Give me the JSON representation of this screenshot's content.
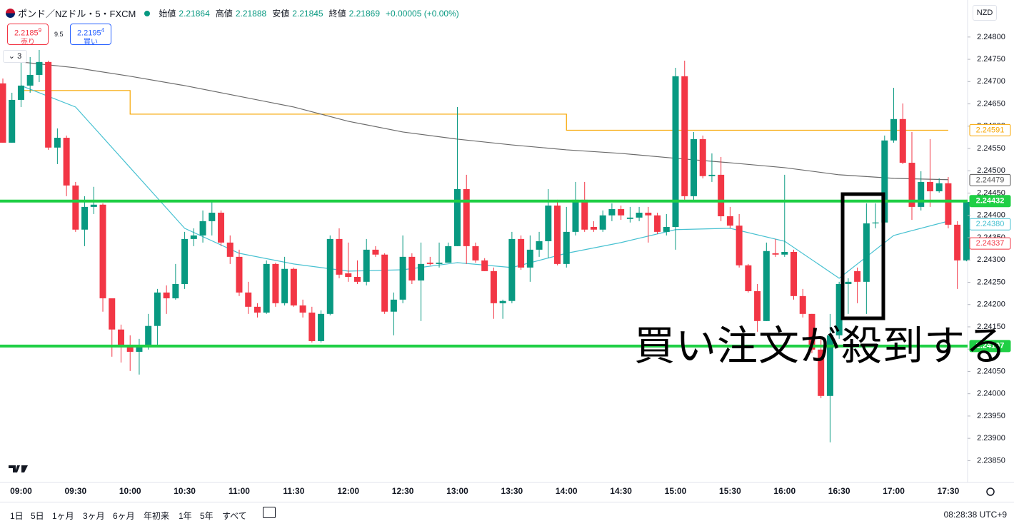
{
  "header": {
    "symbol": "ポンド／NZドル・5・FXCM",
    "ohlc": [
      {
        "label": "始値",
        "value": "2.21864"
      },
      {
        "label": "高値",
        "value": "2.21888"
      },
      {
        "label": "安値",
        "value": "2.21845"
      },
      {
        "label": "終値",
        "value": "2.21869"
      }
    ],
    "change": "+0.00005 (+0.00%)"
  },
  "trade": {
    "sell_price": "2.2185",
    "sell_pip": "9",
    "sell_label": "売り",
    "spread": "9.5",
    "buy_price": "2.2195",
    "buy_pip": "4",
    "buy_label": "買い"
  },
  "indicator_count": "3",
  "currency": "NZD",
  "ranges": [
    "1日",
    "5日",
    "1ヶ月",
    "3ヶ月",
    "6ヶ月",
    "年初来",
    "1年",
    "5年",
    "すべて"
  ],
  "clock": "08:28:38 UTC+9",
  "chart_data": {
    "type": "candlestick",
    "up_color": "#089981",
    "down_color": "#f23645",
    "annotation": "買い注文が殺到する",
    "categories": [
      null,
      null,
      "09:00",
      null,
      null,
      null,
      null,
      null,
      "09:30",
      null,
      null,
      null,
      null,
      null,
      "10:00",
      null,
      null,
      null,
      null,
      null,
      "10:30",
      null,
      null,
      null,
      null,
      null,
      "11:00",
      null,
      null,
      null,
      null,
      null,
      "11:30",
      null,
      null,
      null,
      null,
      null,
      "12:00",
      null,
      null,
      null,
      null,
      null,
      "12:30",
      null,
      null,
      null,
      null,
      null,
      "13:00",
      null,
      null,
      null,
      null,
      null,
      "13:30",
      null,
      null,
      null,
      null,
      null,
      "14:00",
      null,
      null,
      null,
      null,
      null,
      "14:30",
      null,
      null,
      null,
      null,
      null,
      "15:00",
      null,
      null,
      null,
      null,
      null,
      "15:30",
      null,
      null,
      null,
      null,
      null,
      "16:00",
      null,
      null,
      null,
      null,
      null,
      "16:30",
      null,
      null,
      null,
      null,
      null,
      "17:00",
      null,
      null,
      null,
      null,
      null,
      "17:30",
      null,
      null
    ],
    "candles": [
      [
        2.24696,
        2.24707,
        2.24563,
        2.24563
      ],
      [
        2.24563,
        2.24675,
        2.24563,
        2.24659
      ],
      [
        2.24659,
        2.24747,
        2.24643,
        2.24691
      ],
      [
        2.24691,
        2.24755,
        2.24675,
        2.24715
      ],
      [
        2.24715,
        2.24771,
        2.24699,
        2.24744
      ],
      [
        2.24744,
        2.24747,
        2.24547,
        2.24552
      ],
      [
        2.24552,
        2.24595,
        2.24515,
        2.24574
      ],
      [
        2.24574,
        2.24579,
        2.24443,
        2.24467
      ],
      [
        2.24467,
        2.24475,
        2.24363,
        2.24368
      ],
      [
        2.24368,
        2.24443,
        2.24331,
        2.24419
      ],
      [
        2.24419,
        2.24464,
        2.24403,
        2.24424
      ],
      [
        2.24424,
        2.24427,
        2.24184,
        2.24214
      ],
      [
        2.24214,
        2.24214,
        2.24083,
        2.24144
      ],
      [
        2.24144,
        2.24155,
        2.2407,
        2.24105
      ],
      [
        2.24105,
        2.24131,
        2.24051,
        2.24094
      ],
      [
        2.24094,
        2.24123,
        2.24043,
        2.24109
      ],
      [
        2.24109,
        2.24179,
        2.24099,
        2.24152
      ],
      [
        2.24152,
        2.24235,
        2.24107,
        2.24227
      ],
      [
        2.24227,
        2.24243,
        2.24179,
        2.24214
      ],
      [
        2.24214,
        2.24291,
        2.24211,
        2.24246
      ],
      [
        2.24246,
        2.24363,
        2.24235,
        2.24347
      ],
      [
        2.24347,
        2.24371,
        2.24331,
        2.24355
      ],
      [
        2.24355,
        2.24411,
        2.24339,
        2.24387
      ],
      [
        2.24387,
        2.2443,
        2.24355,
        2.24406
      ],
      [
        2.24406,
        2.24411,
        2.24331,
        2.24339
      ],
      [
        2.24339,
        2.24355,
        2.24291,
        2.24307
      ],
      [
        2.24307,
        2.24323,
        2.24219,
        2.24227
      ],
      [
        2.24227,
        2.24251,
        2.24179,
        2.24195
      ],
      [
        2.24195,
        2.24203,
        2.24171,
        2.24182
      ],
      [
        2.24182,
        2.24299,
        2.24179,
        2.24291
      ],
      [
        2.24291,
        2.24294,
        2.24195,
        2.24203
      ],
      [
        2.24203,
        2.24307,
        2.24198,
        2.2428
      ],
      [
        2.2428,
        2.24283,
        2.24195,
        2.24198
      ],
      [
        2.24198,
        2.24211,
        2.24171,
        2.24182
      ],
      [
        2.24182,
        2.24195,
        2.24115,
        2.24118
      ],
      [
        2.24118,
        2.24187,
        2.24115,
        2.24179
      ],
      [
        2.24179,
        2.24355,
        2.24176,
        2.24347
      ],
      [
        2.24347,
        2.24371,
        2.24259,
        2.24267
      ],
      [
        2.2427,
        2.24339,
        2.24251,
        2.24262
      ],
      [
        2.24262,
        2.24299,
        2.24246,
        2.24251
      ],
      [
        2.24251,
        2.24347,
        2.24243,
        2.24323
      ],
      [
        2.24323,
        2.24331,
        2.24307,
        2.24312
      ],
      [
        2.24312,
        2.24315,
        2.24179,
        2.24184
      ],
      [
        2.24184,
        2.24227,
        2.24131,
        2.24211
      ],
      [
        2.24211,
        2.24355,
        2.24203,
        2.24307
      ],
      [
        2.24307,
        2.24315,
        2.24246,
        2.24254
      ],
      [
        2.24254,
        2.24339,
        2.24163,
        2.24291
      ],
      [
        2.24294,
        2.24307,
        2.24288,
        2.24291
      ],
      [
        2.24291,
        2.24339,
        2.24283,
        2.24294
      ],
      [
        2.24294,
        2.24339,
        2.24294,
        2.24331
      ],
      [
        2.24331,
        2.24643,
        2.24331,
        2.24459
      ],
      [
        2.24459,
        2.24491,
        2.24291,
        2.24331
      ],
      [
        2.24331,
        2.24339,
        2.24294,
        2.24299
      ],
      [
        2.24299,
        2.24304,
        2.24275,
        2.24275
      ],
      [
        2.24275,
        2.24283,
        2.24168,
        2.24203
      ],
      [
        2.24203,
        2.24211,
        2.24168,
        2.24208
      ],
      [
        2.24208,
        2.24363,
        2.24203,
        2.24347
      ],
      [
        2.24347,
        2.24355,
        2.24278,
        2.24283
      ],
      [
        2.24283,
        2.24355,
        2.24251,
        2.24323
      ],
      [
        2.24323,
        2.24363,
        2.24307,
        2.24342
      ],
      [
        2.24342,
        2.24459,
        2.24304,
        2.24422
      ],
      [
        2.24422,
        2.24435,
        2.24288,
        2.24291
      ],
      [
        2.24291,
        2.24419,
        2.24283,
        2.24363
      ],
      [
        2.24363,
        2.24475,
        2.24355,
        2.24435
      ],
      [
        2.24435,
        2.24475,
        2.24363,
        2.24368
      ],
      [
        2.24374,
        2.24387,
        2.24363,
        2.24368
      ],
      [
        2.24368,
        2.24411,
        2.24363,
        2.244
      ],
      [
        2.244,
        2.24427,
        2.24387,
        2.24414
      ],
      [
        2.24414,
        2.24422,
        2.2439,
        2.244
      ],
      [
        2.24392,
        2.24419,
        2.24384,
        2.24395
      ],
      [
        2.24395,
        2.24419,
        2.24387,
        2.24406
      ],
      [
        2.24406,
        2.24419,
        2.24339,
        2.244
      ],
      [
        2.244,
        2.24406,
        2.24358,
        2.24363
      ],
      [
        2.24363,
        2.24403,
        2.24355,
        2.24374
      ],
      [
        2.24374,
        2.24731,
        2.24323,
        2.24712
      ],
      [
        2.24712,
        2.24747,
        2.24435,
        2.24443
      ],
      [
        2.24443,
        2.24587,
        2.24435,
        2.24571
      ],
      [
        2.24571,
        2.24579,
        2.24483,
        2.24488
      ],
      [
        2.24488,
        2.24539,
        2.24475,
        2.24491
      ],
      [
        2.24491,
        2.24531,
        2.24387,
        2.24398
      ],
      [
        2.24398,
        2.24419,
        2.24371,
        2.24377
      ],
      [
        2.24377,
        2.24403,
        2.24283,
        2.24288
      ],
      [
        2.24288,
        2.24291,
        2.24227,
        2.2423
      ],
      [
        2.2423,
        2.24246,
        2.24139,
        2.24163
      ],
      [
        2.24163,
        2.24339,
        2.24163,
        2.2432
      ],
      [
        2.24315,
        2.24347,
        2.24307,
        2.24312
      ],
      [
        2.24312,
        2.24491,
        2.24307,
        2.24318
      ],
      [
        2.24318,
        2.24323,
        2.24211,
        2.24219
      ],
      [
        2.24219,
        2.24235,
        2.24171,
        2.24179
      ],
      [
        2.24179,
        2.24179,
        2.24091,
        2.24099
      ],
      [
        2.24099,
        2.24123,
        2.2399,
        2.23995
      ],
      [
        2.23995,
        2.24179,
        2.23891,
        2.24131
      ],
      [
        2.24131,
        2.24251,
        2.24123,
        2.24246
      ],
      [
        2.24246,
        2.24259,
        2.24179,
        2.24251
      ],
      [
        2.24275,
        2.24283,
        2.24203,
        2.24251
      ],
      [
        2.24251,
        2.24427,
        2.24179,
        2.24382
      ],
      [
        2.24382,
        2.24427,
        2.24371,
        2.24384
      ],
      [
        2.24384,
        2.24579,
        2.24384,
        2.24568
      ],
      [
        2.24568,
        2.24686,
        2.24563,
        2.24616
      ],
      [
        2.24616,
        2.24651,
        2.24515,
        2.24518
      ],
      [
        2.24518,
        2.24587,
        2.2439,
        2.24419
      ],
      [
        2.24419,
        2.24499,
        2.24411,
        2.24475
      ],
      [
        2.24475,
        2.24571,
        2.24419,
        2.24454
      ],
      [
        2.24454,
        2.24483,
        2.24451,
        2.24472
      ],
      [
        2.24472,
        2.24486,
        2.24371,
        2.24379
      ],
      [
        2.24379,
        2.24387,
        2.24235,
        2.24299
      ],
      [
        2.24299,
        2.24435,
        2.24297,
        2.2443
      ]
    ],
    "lines": [
      {
        "color": "#f7a600",
        "step": true,
        "x": [
          "09:00",
          "09:30",
          "10:00",
          "10:30",
          "11:00",
          "11:30",
          "12:00",
          "12:30",
          "13:00",
          "13:30",
          "14:00",
          "14:30",
          "15:00",
          "15:30",
          "16:00",
          "16:30",
          "17:00",
          "17:30"
        ],
        "values": [
          2.2468,
          2.2468,
          2.24627,
          2.24627,
          2.24627,
          2.24627,
          2.24627,
          2.24627,
          2.24627,
          2.24627,
          2.24591,
          2.24591,
          2.24591,
          2.24591,
          2.24591,
          2.24591,
          2.24591,
          2.24591
        ]
      },
      {
        "color": "#6b6b6b",
        "x": [
          "09:00",
          "09:30",
          "10:00",
          "10:30",
          "11:00",
          "11:30",
          "12:00",
          "12:30",
          "13:00",
          "13:30",
          "14:00",
          "14:30",
          "15:00",
          "15:30",
          "16:00",
          "16:30",
          "17:00",
          "17:30"
        ],
        "values": [
          2.24744,
          2.24731,
          2.24712,
          2.24691,
          2.24667,
          2.24643,
          2.24611,
          2.24587,
          2.24571,
          2.24558,
          2.24547,
          2.24539,
          2.24528,
          2.24518,
          2.24507,
          2.24491,
          2.24483,
          2.2448
        ]
      },
      {
        "color": "#47c1d1",
        "x": [
          "09:00",
          "09:30",
          "10:00",
          "10:30",
          "11:00",
          "11:30",
          "12:00",
          "12:30",
          "13:00",
          "13:30",
          "14:00",
          "14:30",
          "15:00",
          "15:30",
          "16:00",
          "16:30",
          "17:00",
          "17:30"
        ],
        "values": [
          2.24691,
          2.24643,
          2.24507,
          2.24371,
          2.24315,
          2.24291,
          2.24275,
          2.24278,
          2.24294,
          2.24283,
          2.24315,
          2.24339,
          2.24368,
          2.24371,
          2.24342,
          2.24259,
          2.24355,
          2.24387
        ]
      }
    ],
    "levels": [
      {
        "value": 2.24432,
        "color": "#1fcf45"
      },
      {
        "value": 2.24107,
        "color": "#1fcf45"
      }
    ],
    "price_tags": [
      {
        "value": 2.24591,
        "color": "#f7a600",
        "style": "outline"
      },
      {
        "value": 2.24479,
        "color": "#555555",
        "style": "outline"
      },
      {
        "value": 2.24432,
        "color": "#1fcf45",
        "style": "fill"
      },
      {
        "value": 2.2438,
        "label": "2.24380",
        "color": "#47c1d1",
        "style": "outline"
      },
      {
        "value": 2.24337,
        "color": "#f23645",
        "style": "outline"
      },
      {
        "value": 2.24107,
        "color": "#1fcf45",
        "style": "fill"
      }
    ],
    "ylim": [
      2.23801,
      2.24883
    ],
    "yticks": [
      {
        "value": 2.248,
        "label": "2.24800"
      },
      {
        "value": 2.2475,
        "label": "2.24750"
      },
      {
        "value": 2.247,
        "label": "2.24700"
      },
      {
        "value": 2.2465,
        "label": "2.24650"
      },
      {
        "value": 2.246,
        "label": "2.24600"
      },
      {
        "value": 2.2455,
        "label": "2.24550"
      },
      {
        "value": 2.245,
        "label": "2.24500"
      },
      {
        "value": 2.2445,
        "label": "2.24450"
      },
      {
        "value": 2.244,
        "label": "2.24400"
      },
      {
        "value": 2.2435,
        "label": "2.24350"
      },
      {
        "value": 2.243,
        "label": "2.24300"
      },
      {
        "value": 2.2425,
        "label": "2.24250"
      },
      {
        "value": 2.242,
        "label": "2.24200"
      },
      {
        "value": 2.2415,
        "label": "2.24150"
      },
      {
        "value": 2.241,
        "label": "2.24100"
      },
      {
        "value": 2.2405,
        "label": "2.24050"
      },
      {
        "value": 2.24,
        "label": "2.24000"
      },
      {
        "value": 2.2395,
        "label": "2.23950"
      },
      {
        "value": 2.239,
        "label": "2.23900"
      },
      {
        "value": 2.2385,
        "label": "2.23850"
      }
    ]
  }
}
